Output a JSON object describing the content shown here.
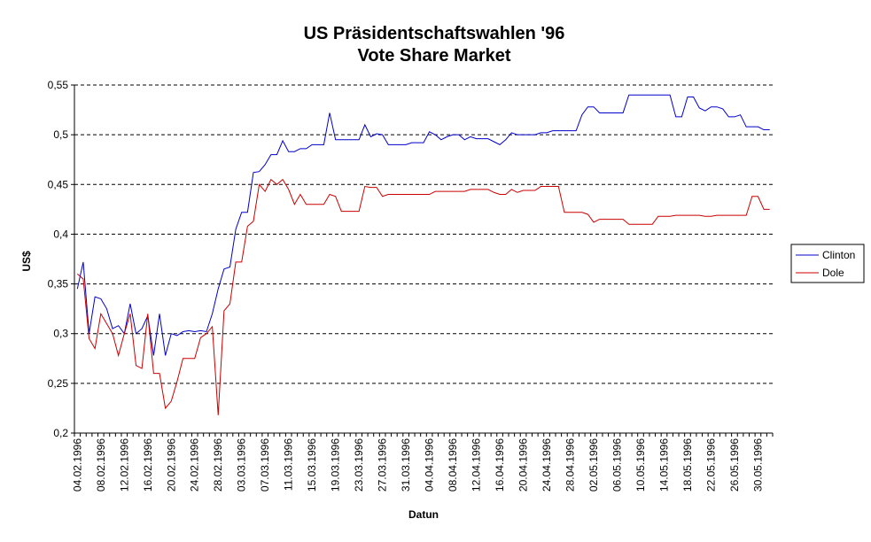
{
  "chart_data": {
    "type": "line",
    "title_line1": "US Präsidentschaftswahlen '96",
    "title_line2": "Vote Share Market",
    "xlabel": "Datun",
    "ylabel": "US$",
    "ylim": [
      0.2,
      0.55
    ],
    "y_ticks": [
      {
        "value": 0.2,
        "label": "0,2"
      },
      {
        "value": 0.25,
        "label": "0,25"
      },
      {
        "value": 0.3,
        "label": "0,3"
      },
      {
        "value": 0.35,
        "label": "0,35"
      },
      {
        "value": 0.4,
        "label": "0,4"
      },
      {
        "value": 0.45,
        "label": "0,45"
      },
      {
        "value": 0.5,
        "label": "0,5"
      },
      {
        "value": 0.55,
        "label": "0,55"
      }
    ],
    "grid": "horizontal-dashed",
    "legend_position": "right",
    "x_start": "1996-02-04",
    "x_end": "1996-06-01",
    "x_tick_labels": [
      "04.02.1996",
      "08.02.1996",
      "12.02.1996",
      "16.02.1996",
      "20.02.1996",
      "24.02.1996",
      "28.02.1996",
      "03.03.1996",
      "07.03.1996",
      "11.03.1996",
      "15.03.1996",
      "19.03.1996",
      "23.03.1996",
      "27.03.1996",
      "31.03.1996",
      "04.04.1996",
      "08.04.1996",
      "12.04.1996",
      "16.04.1996",
      "20.04.1996",
      "24.04.1996",
      "28.04.1996",
      "02.05.1996",
      "06.05.1996",
      "10.05.1996",
      "14.05.1996",
      "18.05.1996",
      "22.05.1996",
      "26.05.1996",
      "30.05.1996"
    ],
    "series": [
      {
        "name": "Clinton",
        "color": "#0000cc",
        "points": [
          [
            "1996-02-04",
            0.345
          ],
          [
            "1996-02-05",
            0.372
          ],
          [
            "1996-02-06",
            0.3
          ],
          [
            "1996-02-07",
            0.337
          ],
          [
            "1996-02-08",
            0.335
          ],
          [
            "1996-02-09",
            0.325
          ],
          [
            "1996-02-10",
            0.305
          ],
          [
            "1996-02-11",
            0.308
          ],
          [
            "1996-02-12",
            0.3
          ],
          [
            "1996-02-13",
            0.33
          ],
          [
            "1996-02-14",
            0.3
          ],
          [
            "1996-02-15",
            0.305
          ],
          [
            "1996-02-16",
            0.318
          ],
          [
            "1996-02-17",
            0.278
          ],
          [
            "1996-02-18",
            0.32
          ],
          [
            "1996-02-19",
            0.278
          ],
          [
            "1996-02-20",
            0.3
          ],
          [
            "1996-02-21",
            0.298
          ],
          [
            "1996-02-22",
            0.302
          ],
          [
            "1996-02-23",
            0.303
          ],
          [
            "1996-02-24",
            0.302
          ],
          [
            "1996-02-25",
            0.303
          ],
          [
            "1996-02-26",
            0.302
          ],
          [
            "1996-02-27",
            0.32
          ],
          [
            "1996-02-28",
            0.345
          ],
          [
            "1996-02-29",
            0.365
          ],
          [
            "1996-03-01",
            0.367
          ],
          [
            "1996-03-02",
            0.405
          ],
          [
            "1996-03-03",
            0.422
          ],
          [
            "1996-03-04",
            0.422
          ],
          [
            "1996-03-05",
            0.462
          ],
          [
            "1996-03-06",
            0.463
          ],
          [
            "1996-03-07",
            0.47
          ],
          [
            "1996-03-08",
            0.48
          ],
          [
            "1996-03-09",
            0.48
          ],
          [
            "1996-03-10",
            0.494
          ],
          [
            "1996-03-11",
            0.483
          ],
          [
            "1996-03-12",
            0.483
          ],
          [
            "1996-03-13",
            0.486
          ],
          [
            "1996-03-14",
            0.486
          ],
          [
            "1996-03-15",
            0.49
          ],
          [
            "1996-03-16",
            0.49
          ],
          [
            "1996-03-17",
            0.49
          ],
          [
            "1996-03-18",
            0.522
          ],
          [
            "1996-03-19",
            0.495
          ],
          [
            "1996-03-20",
            0.495
          ],
          [
            "1996-03-21",
            0.495
          ],
          [
            "1996-03-22",
            0.495
          ],
          [
            "1996-03-23",
            0.495
          ],
          [
            "1996-03-24",
            0.51
          ],
          [
            "1996-03-25",
            0.498
          ],
          [
            "1996-03-26",
            0.501
          ],
          [
            "1996-03-27",
            0.5
          ],
          [
            "1996-03-28",
            0.49
          ],
          [
            "1996-03-29",
            0.49
          ],
          [
            "1996-03-30",
            0.49
          ],
          [
            "1996-03-31",
            0.49
          ],
          [
            "1996-04-01",
            0.492
          ],
          [
            "1996-04-02",
            0.492
          ],
          [
            "1996-04-03",
            0.492
          ],
          [
            "1996-04-04",
            0.503
          ],
          [
            "1996-04-05",
            0.5
          ],
          [
            "1996-04-06",
            0.495
          ],
          [
            "1996-04-07",
            0.498
          ],
          [
            "1996-04-08",
            0.5
          ],
          [
            "1996-04-09",
            0.5
          ],
          [
            "1996-04-10",
            0.495
          ],
          [
            "1996-04-11",
            0.498
          ],
          [
            "1996-04-12",
            0.496
          ],
          [
            "1996-04-13",
            0.496
          ],
          [
            "1996-04-14",
            0.496
          ],
          [
            "1996-04-15",
            0.493
          ],
          [
            "1996-04-16",
            0.49
          ],
          [
            "1996-04-17",
            0.495
          ],
          [
            "1996-04-18",
            0.502
          ],
          [
            "1996-04-19",
            0.5
          ],
          [
            "1996-04-20",
            0.5
          ],
          [
            "1996-04-21",
            0.5
          ],
          [
            "1996-04-22",
            0.5
          ],
          [
            "1996-04-23",
            0.502
          ],
          [
            "1996-04-24",
            0.502
          ],
          [
            "1996-04-25",
            0.504
          ],
          [
            "1996-04-26",
            0.504
          ],
          [
            "1996-04-27",
            0.504
          ],
          [
            "1996-04-28",
            0.504
          ],
          [
            "1996-04-29",
            0.504
          ],
          [
            "1996-04-30",
            0.52
          ],
          [
            "1996-05-01",
            0.528
          ],
          [
            "1996-05-02",
            0.528
          ],
          [
            "1996-05-03",
            0.522
          ],
          [
            "1996-05-04",
            0.522
          ],
          [
            "1996-05-05",
            0.522
          ],
          [
            "1996-05-06",
            0.522
          ],
          [
            "1996-05-07",
            0.522
          ],
          [
            "1996-05-08",
            0.54
          ],
          [
            "1996-05-09",
            0.54
          ],
          [
            "1996-05-10",
            0.54
          ],
          [
            "1996-05-11",
            0.54
          ],
          [
            "1996-05-12",
            0.54
          ],
          [
            "1996-05-13",
            0.54
          ],
          [
            "1996-05-14",
            0.54
          ],
          [
            "1996-05-15",
            0.54
          ],
          [
            "1996-05-16",
            0.518
          ],
          [
            "1996-05-17",
            0.518
          ],
          [
            "1996-05-18",
            0.538
          ],
          [
            "1996-05-19",
            0.538
          ],
          [
            "1996-05-20",
            0.527
          ],
          [
            "1996-05-21",
            0.524
          ],
          [
            "1996-05-22",
            0.528
          ],
          [
            "1996-05-23",
            0.528
          ],
          [
            "1996-05-24",
            0.526
          ],
          [
            "1996-05-25",
            0.518
          ],
          [
            "1996-05-26",
            0.518
          ],
          [
            "1996-05-27",
            0.52
          ],
          [
            "1996-05-28",
            0.508
          ],
          [
            "1996-05-29",
            0.508
          ],
          [
            "1996-05-30",
            0.508
          ],
          [
            "1996-05-31",
            0.505
          ],
          [
            "1996-06-01",
            0.505
          ]
        ]
      },
      {
        "name": "Dole",
        "color": "#cc0000",
        "points": [
          [
            "1996-02-04",
            0.36
          ],
          [
            "1996-02-05",
            0.355
          ],
          [
            "1996-02-06",
            0.295
          ],
          [
            "1996-02-07",
            0.285
          ],
          [
            "1996-02-08",
            0.32
          ],
          [
            "1996-02-09",
            0.31
          ],
          [
            "1996-02-10",
            0.3
          ],
          [
            "1996-02-11",
            0.278
          ],
          [
            "1996-02-12",
            0.3
          ],
          [
            "1996-02-13",
            0.32
          ],
          [
            "1996-02-14",
            0.268
          ],
          [
            "1996-02-15",
            0.265
          ],
          [
            "1996-02-16",
            0.32
          ],
          [
            "1996-02-17",
            0.26
          ],
          [
            "1996-02-18",
            0.26
          ],
          [
            "1996-02-19",
            0.225
          ],
          [
            "1996-02-20",
            0.232
          ],
          [
            "1996-02-21",
            0.252
          ],
          [
            "1996-02-22",
            0.275
          ],
          [
            "1996-02-23",
            0.275
          ],
          [
            "1996-02-24",
            0.275
          ],
          [
            "1996-02-25",
            0.296
          ],
          [
            "1996-02-26",
            0.3
          ],
          [
            "1996-02-27",
            0.307
          ],
          [
            "1996-02-28",
            0.218
          ],
          [
            "1996-02-29",
            0.323
          ],
          [
            "1996-03-01",
            0.33
          ],
          [
            "1996-03-02",
            0.372
          ],
          [
            "1996-03-03",
            0.372
          ],
          [
            "1996-03-04",
            0.408
          ],
          [
            "1996-03-05",
            0.413
          ],
          [
            "1996-03-06",
            0.45
          ],
          [
            "1996-03-07",
            0.443
          ],
          [
            "1996-03-08",
            0.455
          ],
          [
            "1996-03-09",
            0.45
          ],
          [
            "1996-03-10",
            0.455
          ],
          [
            "1996-03-11",
            0.445
          ],
          [
            "1996-03-12",
            0.43
          ],
          [
            "1996-03-13",
            0.44
          ],
          [
            "1996-03-14",
            0.43
          ],
          [
            "1996-03-15",
            0.43
          ],
          [
            "1996-03-16",
            0.43
          ],
          [
            "1996-03-17",
            0.43
          ],
          [
            "1996-03-18",
            0.44
          ],
          [
            "1996-03-19",
            0.438
          ],
          [
            "1996-03-20",
            0.423
          ],
          [
            "1996-03-21",
            0.423
          ],
          [
            "1996-03-22",
            0.423
          ],
          [
            "1996-03-23",
            0.423
          ],
          [
            "1996-03-24",
            0.448
          ],
          [
            "1996-03-25",
            0.447
          ],
          [
            "1996-03-26",
            0.447
          ],
          [
            "1996-03-27",
            0.438
          ],
          [
            "1996-03-28",
            0.44
          ],
          [
            "1996-03-29",
            0.44
          ],
          [
            "1996-03-30",
            0.44
          ],
          [
            "1996-03-31",
            0.44
          ],
          [
            "1996-04-01",
            0.44
          ],
          [
            "1996-04-02",
            0.44
          ],
          [
            "1996-04-03",
            0.44
          ],
          [
            "1996-04-04",
            0.44
          ],
          [
            "1996-04-05",
            0.443
          ],
          [
            "1996-04-06",
            0.443
          ],
          [
            "1996-04-07",
            0.443
          ],
          [
            "1996-04-08",
            0.443
          ],
          [
            "1996-04-09",
            0.443
          ],
          [
            "1996-04-10",
            0.443
          ],
          [
            "1996-04-11",
            0.445
          ],
          [
            "1996-04-12",
            0.445
          ],
          [
            "1996-04-13",
            0.445
          ],
          [
            "1996-04-14",
            0.445
          ],
          [
            "1996-04-15",
            0.442
          ],
          [
            "1996-04-16",
            0.44
          ],
          [
            "1996-04-17",
            0.44
          ],
          [
            "1996-04-18",
            0.445
          ],
          [
            "1996-04-19",
            0.442
          ],
          [
            "1996-04-20",
            0.444
          ],
          [
            "1996-04-21",
            0.444
          ],
          [
            "1996-04-22",
            0.444
          ],
          [
            "1996-04-23",
            0.448
          ],
          [
            "1996-04-24",
            0.448
          ],
          [
            "1996-04-25",
            0.448
          ],
          [
            "1996-04-26",
            0.448
          ],
          [
            "1996-04-27",
            0.422
          ],
          [
            "1996-04-28",
            0.422
          ],
          [
            "1996-04-29",
            0.422
          ],
          [
            "1996-04-30",
            0.422
          ],
          [
            "1996-05-01",
            0.42
          ],
          [
            "1996-05-02",
            0.412
          ],
          [
            "1996-05-03",
            0.415
          ],
          [
            "1996-05-04",
            0.415
          ],
          [
            "1996-05-05",
            0.415
          ],
          [
            "1996-05-06",
            0.415
          ],
          [
            "1996-05-07",
            0.415
          ],
          [
            "1996-05-08",
            0.41
          ],
          [
            "1996-05-09",
            0.41
          ],
          [
            "1996-05-10",
            0.41
          ],
          [
            "1996-05-11",
            0.41
          ],
          [
            "1996-05-12",
            0.41
          ],
          [
            "1996-05-13",
            0.418
          ],
          [
            "1996-05-14",
            0.418
          ],
          [
            "1996-05-15",
            0.418
          ],
          [
            "1996-05-16",
            0.419
          ],
          [
            "1996-05-17",
            0.419
          ],
          [
            "1996-05-18",
            0.419
          ],
          [
            "1996-05-19",
            0.419
          ],
          [
            "1996-05-20",
            0.419
          ],
          [
            "1996-05-21",
            0.418
          ],
          [
            "1996-05-22",
            0.418
          ],
          [
            "1996-05-23",
            0.419
          ],
          [
            "1996-05-24",
            0.419
          ],
          [
            "1996-05-25",
            0.419
          ],
          [
            "1996-05-26",
            0.419
          ],
          [
            "1996-05-27",
            0.419
          ],
          [
            "1996-05-28",
            0.419
          ],
          [
            "1996-05-29",
            0.438
          ],
          [
            "1996-05-30",
            0.438
          ],
          [
            "1996-05-31",
            0.425
          ],
          [
            "1996-06-01",
            0.425
          ]
        ]
      }
    ]
  }
}
